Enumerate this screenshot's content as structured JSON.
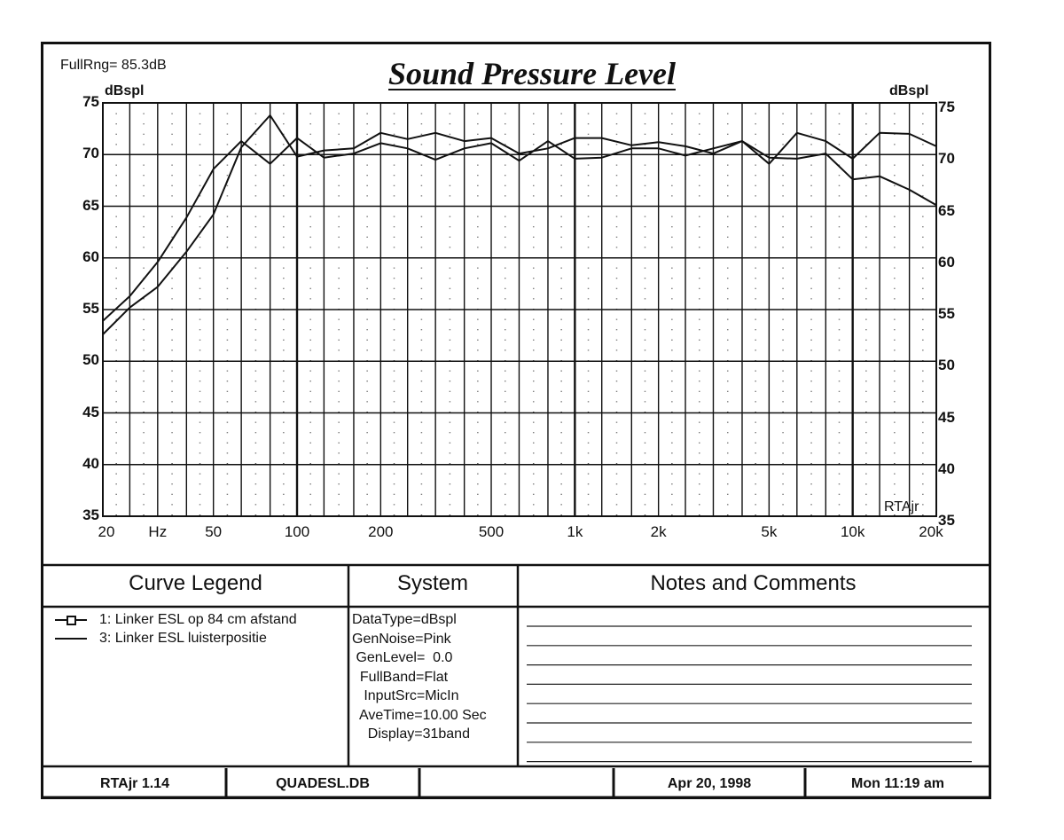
{
  "header": {
    "full_range": "FullRng=  85.3dB",
    "title": "Sound Pressure Level",
    "unit_left": "dBspl",
    "unit_right": "dBspl",
    "watermark": "RTAjr"
  },
  "chart_data": {
    "type": "line",
    "title": "Sound Pressure Level",
    "xscale": "log",
    "xlim": [
      20,
      20000
    ],
    "ylim": [
      35,
      75
    ],
    "ylabel": "dBspl",
    "grid": true,
    "x_tick_labels": [
      "20",
      "Hz",
      "50",
      "100",
      "200",
      "500",
      "1k",
      "2k",
      "5k",
      "10k",
      "20k"
    ],
    "y_ticks": [
      35,
      40,
      45,
      50,
      55,
      60,
      65,
      70,
      75
    ],
    "x": [
      20,
      25,
      31.5,
      40,
      50,
      63,
      80,
      100,
      125,
      160,
      200,
      250,
      315,
      400,
      500,
      630,
      800,
      1000,
      1250,
      1600,
      2000,
      2500,
      3150,
      4000,
      5000,
      6300,
      8000,
      10000,
      12500,
      16000,
      20000
    ],
    "series": [
      {
        "name": "1: Linker ESL op 84 cm afstand",
        "marker": "square",
        "values": [
          53.9,
          56.3,
          59.6,
          63.9,
          68.6,
          71.3,
          69.1,
          71.6,
          69.7,
          70.1,
          71.1,
          70.6,
          69.5,
          70.6,
          71.1,
          69.4,
          71.3,
          69.6,
          69.7,
          70.6,
          70.6,
          69.9,
          70.6,
          71.3,
          69.7,
          69.6,
          70.1,
          67.6,
          67.9,
          66.6,
          65.1
        ]
      },
      {
        "name": "3: Linker ESL luisterpositie",
        "marker": "none",
        "values": [
          52.6,
          55.2,
          57.2,
          60.6,
          64.2,
          70.7,
          73.8,
          69.8,
          70.4,
          70.6,
          72.1,
          71.5,
          72.1,
          71.3,
          71.6,
          70.1,
          70.6,
          71.6,
          71.6,
          70.9,
          71.2,
          70.8,
          70.1,
          71.3,
          69.1,
          72.1,
          71.3,
          69.6,
          72.1,
          72.0,
          70.8
        ]
      }
    ]
  },
  "legend_panel": {
    "title": "Curve Legend",
    "items": [
      "1: Linker ESL op 84 cm afstand",
      "3: Linker ESL luisterpositie"
    ]
  },
  "system_panel": {
    "title": "System",
    "lines": [
      "DataType=dBspl",
      "GenNoise=Pink",
      " GenLevel=  0.0",
      "  FullBand=Flat",
      "   InputSrc=MicIn",
      "  AveTime=10.00 Sec",
      "    Display=31band"
    ]
  },
  "notes_panel": {
    "title": "Notes and Comments"
  },
  "footer": {
    "program": "RTAjr 1.14",
    "file": "QUADESL.DB",
    "blank": "",
    "date": "Apr 20, 1998",
    "time": "Mon 11:19 am"
  }
}
